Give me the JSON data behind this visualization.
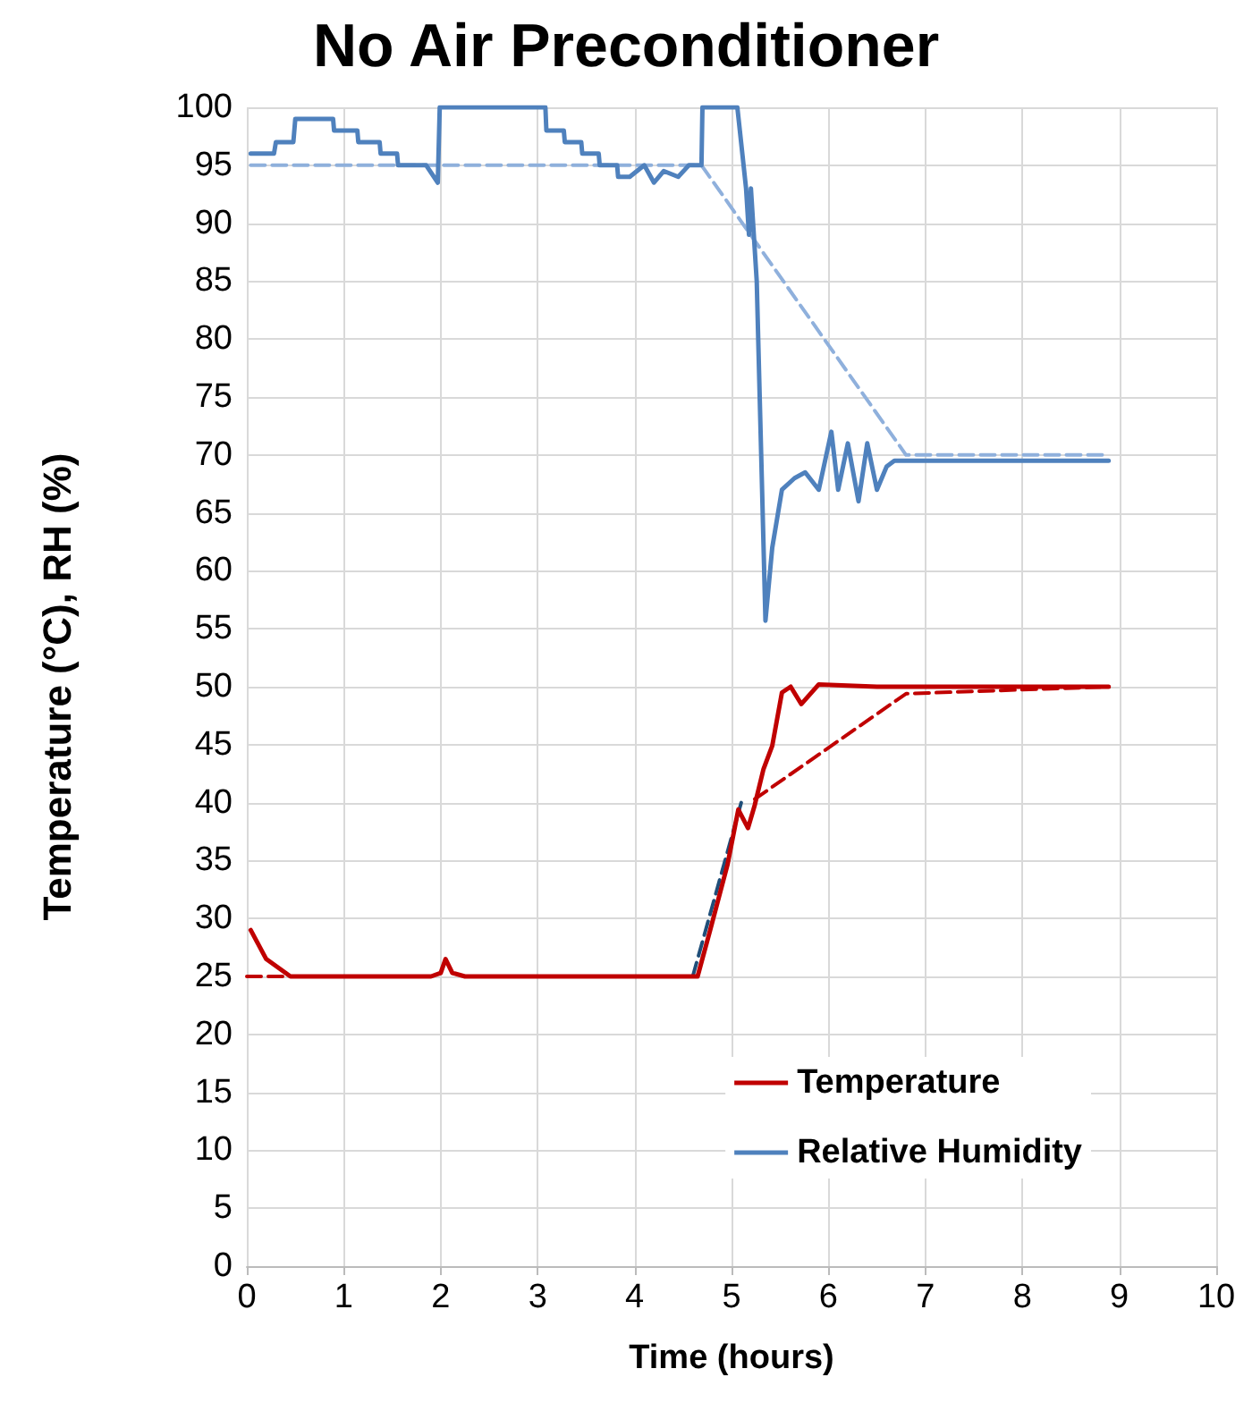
{
  "chart_data": {
    "type": "line",
    "title": "No Air Preconditioner",
    "xlabel": "Time (hours)",
    "ylabel": "Temperature (°C), RH (%)",
    "xlim": [
      0,
      10
    ],
    "xticks": [
      0,
      1,
      2,
      3,
      4,
      5,
      6,
      7,
      8,
      9,
      10
    ],
    "ylim": [
      0,
      100
    ],
    "yticks": [
      0,
      5,
      10,
      15,
      20,
      25,
      30,
      35,
      40,
      45,
      50,
      55,
      60,
      65,
      70,
      75,
      80,
      85,
      90,
      95,
      100
    ],
    "grid": true,
    "legend": "bottom right",
    "marker": "none",
    "line_style": "solid",
    "series": [
      {
        "name": "Temperature",
        "color": "#c00000",
        "x": [
          0.04,
          0.2,
          0.45,
          1.9,
          2.0,
          2.05,
          2.12,
          2.25,
          4.55,
          4.65,
          4.78,
          4.96,
          5.07,
          5.17,
          5.24,
          5.33,
          5.42,
          5.52,
          5.61,
          5.72,
          5.9,
          6.5,
          7.5,
          8.89
        ],
        "values": [
          29,
          26.5,
          25,
          25,
          25.3,
          26.5,
          25.3,
          25,
          25,
          25,
          29,
          34.7,
          39.4,
          37.8,
          39.8,
          42.9,
          44.9,
          49.5,
          50,
          48.5,
          50.2,
          50,
          50,
          50
        ]
      },
      {
        "name": "Relative Humidity",
        "color": "#4f81bd",
        "x": [
          0.04,
          0.28,
          0.3,
          0.48,
          0.5,
          0.89,
          0.9,
          1.14,
          1.15,
          1.37,
          1.38,
          1.55,
          1.56,
          1.85,
          1.97,
          1.99,
          3.08,
          3.09,
          3.27,
          3.28,
          3.45,
          3.46,
          3.63,
          3.64,
          3.82,
          3.83,
          3.95,
          4.1,
          4.2,
          4.3,
          4.45,
          4.56,
          4.69,
          4.7,
          5.06,
          5.15,
          5.18,
          5.2,
          5.26,
          5.35,
          5.42,
          5.52,
          5.65,
          5.76,
          5.9,
          6.03,
          6.1,
          6.2,
          6.31,
          6.4,
          6.5,
          6.6,
          6.68,
          6.8,
          7.05,
          7.5,
          8,
          8.5,
          8.89
        ],
        "values": [
          96,
          96,
          97,
          97,
          99,
          99,
          98,
          98,
          97,
          97,
          96,
          96,
          95,
          95,
          93.5,
          100,
          100,
          98,
          98,
          97,
          97,
          96,
          96,
          95,
          95,
          94,
          94,
          95,
          93.5,
          94.5,
          94,
          95,
          95,
          100,
          100,
          93,
          89,
          93,
          85,
          55.7,
          62,
          67,
          68,
          68.5,
          67,
          72,
          67,
          71,
          66,
          71,
          67,
          69,
          69.5,
          69.5,
          69.5,
          69.5,
          69.5,
          69.5,
          69.5
        ]
      },
      {
        "color": "#8fb0dc",
        "line_style": "dashed",
        "x": [
          0.04,
          4.69,
          6.8,
          8.89
        ],
        "values": [
          95,
          95,
          70,
          70
        ]
      },
      {
        "color": "#c00000",
        "line_style": "dashed",
        "x": [
          0,
          0.4
        ],
        "values": [
          25,
          25
        ]
      },
      {
        "color": "#c00000",
        "line_style": "dashed",
        "x": [
          5.24,
          6.8,
          8.89
        ],
        "values": [
          40.3,
          49.4,
          50
        ]
      },
      {
        "color": "#1f4e79",
        "line_style": "dashed",
        "x": [
          4.6,
          5.1
        ],
        "values": [
          25,
          40
        ]
      }
    ]
  }
}
